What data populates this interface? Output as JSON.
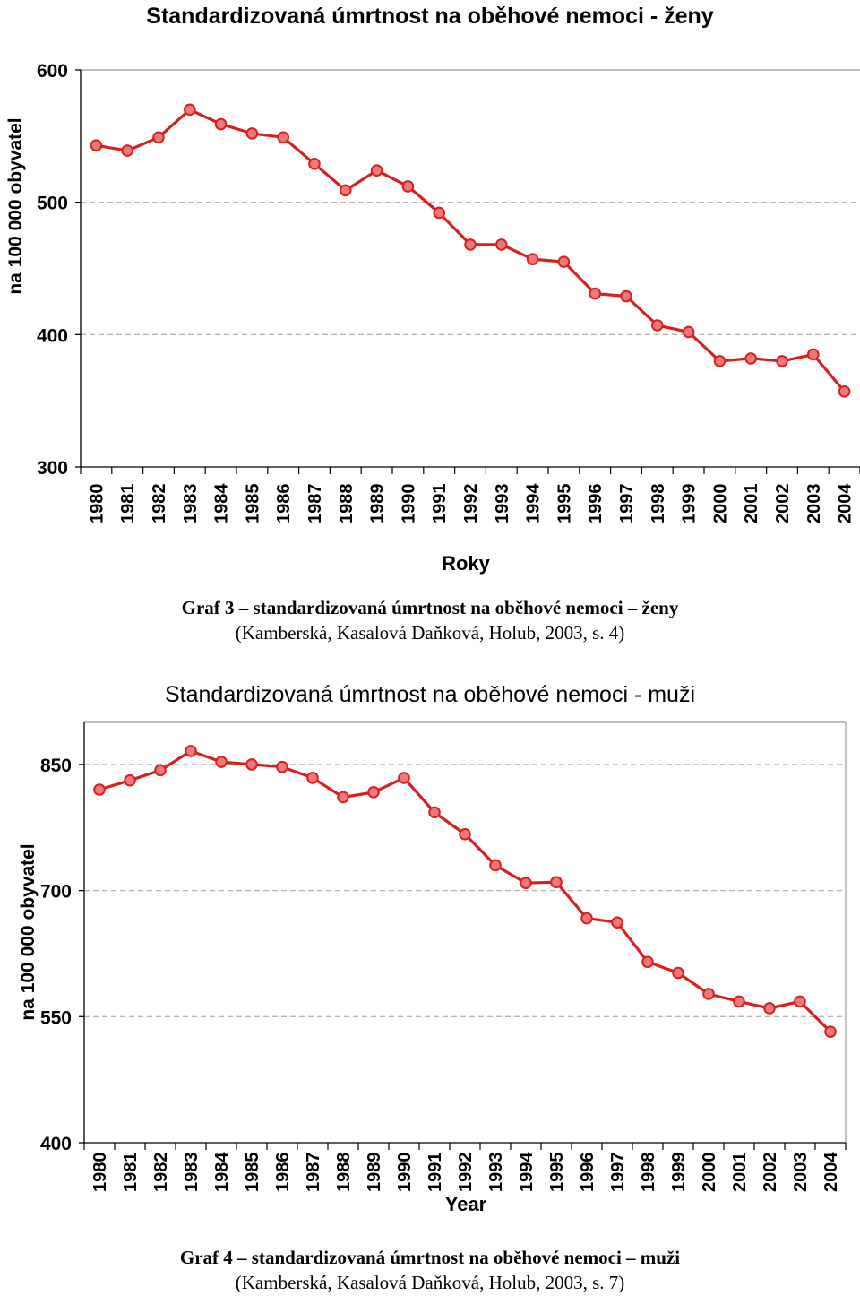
{
  "chart_data": [
    {
      "type": "line",
      "title": "Standardizovaná úmrtnost na oběhové nemoci - ženy",
      "xlabel": "Roky",
      "ylabel": "na 100 000 obyvatel",
      "ylim": [
        300,
        600
      ],
      "yticks": [
        "300",
        "400",
        "500",
        "600"
      ],
      "grid": "horizontal dashed",
      "categories": [
        "1980",
        "1981",
        "1982",
        "1983",
        "1984",
        "1985",
        "1986",
        "1987",
        "1988",
        "1989",
        "1990",
        "1991",
        "1992",
        "1993",
        "1994",
        "1995",
        "1996",
        "1997",
        "1998",
        "1999",
        "2000",
        "2001",
        "2002",
        "2003",
        "2004"
      ],
      "series": [
        {
          "name": "ženy",
          "color": "#d62020",
          "marker_fill": "#f07878",
          "values": [
            543,
            539,
            549,
            570,
            559,
            552,
            549,
            529,
            509,
            524,
            512,
            492,
            468,
            468,
            457,
            455,
            431,
            429,
            407,
            402,
            380,
            382,
            380,
            385,
            357
          ]
        }
      ]
    },
    {
      "type": "line",
      "title": "Standardizovaná úmrtnost na oběhové nemoci - muži",
      "xlabel": "Year",
      "ylabel": "na 100 000 obyvatel",
      "ylim": [
        400,
        900
      ],
      "yticks": [
        "400",
        "550",
        "700",
        "850"
      ],
      "grid": "horizontal dashed",
      "categories": [
        "1980",
        "1981",
        "1982",
        "1983",
        "1984",
        "1985",
        "1986",
        "1987",
        "1988",
        "1989",
        "1990",
        "1991",
        "1992",
        "1993",
        "1994",
        "1995",
        "1996",
        "1997",
        "1998",
        "1999",
        "2000",
        "2001",
        "2002",
        "2003",
        "2004"
      ],
      "series": [
        {
          "name": "muži",
          "color": "#d62020",
          "marker_fill": "#f07878",
          "values": [
            820,
            831,
            843,
            866,
            853,
            850,
            847,
            834,
            811,
            817,
            834,
            793,
            767,
            730,
            709,
            710,
            667,
            662,
            615,
            602,
            577,
            568,
            560,
            568,
            532
          ]
        }
      ]
    }
  ],
  "captions": [
    {
      "line1": "Graf 3 – standardizovaná úmrtnost na oběhové nemoci – ženy",
      "line2": "(Kamberská, Kasalová Daňková, Holub, 2003, s. 4)"
    },
    {
      "line1": "Graf 4 – standardizovaná úmrtnost na oběhové nemoci – muži",
      "line2": "(Kamberská, Kasalová Daňková, Holub, 2003, s. 7)"
    }
  ]
}
